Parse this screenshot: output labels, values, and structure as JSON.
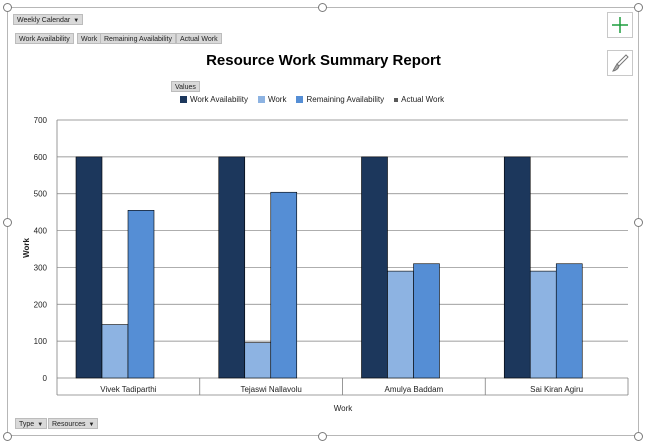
{
  "filters": {
    "calendar": "Weekly Calendar",
    "fields": [
      "Work Availability",
      "Work",
      "Remaining Availability",
      "Actual Work"
    ],
    "values_label": "Values",
    "type_label": "Type",
    "resources_label": "Resources"
  },
  "colors": {
    "work_availability": "#1c375c",
    "work": "#8db3e2",
    "remaining_availability": "#558ed5",
    "actual_work": "#595959",
    "grid": "#7f7f7f"
  },
  "icons": [
    "plus-icon",
    "brush-icon"
  ],
  "chart_data": {
    "type": "bar",
    "title": "Resource Work Summary Report",
    "xlabel": "Work",
    "ylabel": "Work",
    "ylim": [
      0,
      700
    ],
    "yticks": [
      0,
      100,
      200,
      300,
      400,
      500,
      600,
      700
    ],
    "grid": true,
    "legend": "top",
    "categories": [
      "Vivek Tadiparthi",
      "Tejaswi Nallavolu",
      "Amulya Baddam",
      "Sai Kiran Agiru"
    ],
    "series": [
      {
        "name": "Work Availability",
        "values": [
          600,
          600,
          600,
          600
        ]
      },
      {
        "name": "Work",
        "values": [
          145,
          96,
          290,
          290
        ]
      },
      {
        "name": "Remaining Availability",
        "values": [
          455,
          504,
          310,
          310
        ]
      },
      {
        "name": "Actual Work",
        "values": [
          0,
          0,
          0,
          0
        ]
      }
    ]
  }
}
